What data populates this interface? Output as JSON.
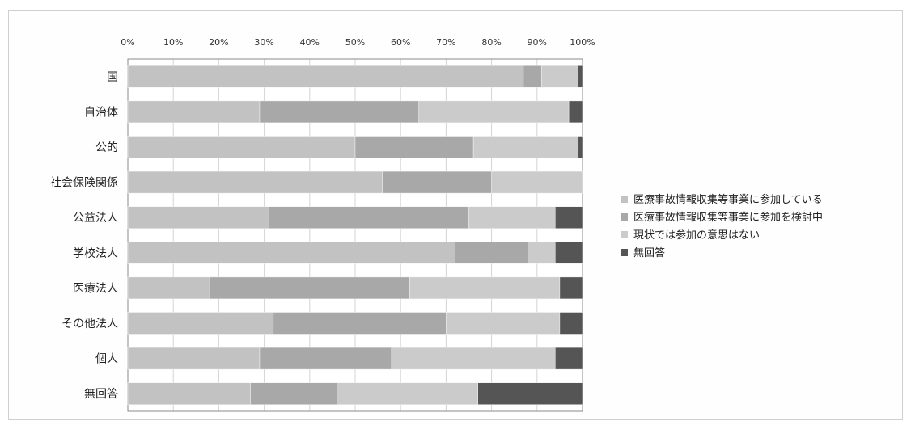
{
  "chart_data": {
    "type": "bar",
    "orientation": "horizontal",
    "stacked": true,
    "normalized": true,
    "categories": [
      "国",
      "自治体",
      "公的",
      "社会保険関係",
      "公益法人",
      "学校法人",
      "医療法人",
      "その他法人",
      "個人",
      "無回答"
    ],
    "x_ticks": [
      "0%",
      "10%",
      "20%",
      "30%",
      "40%",
      "50%",
      "60%",
      "70%",
      "80%",
      "90%",
      "100%"
    ],
    "xlim": [
      0,
      100
    ],
    "grid": true,
    "legend_position": "right",
    "series": [
      {
        "name": "医療事故情報収集等事業に参加している",
        "color": "#c2c2c2",
        "values": [
          87,
          29,
          50,
          56,
          31,
          72,
          18,
          32,
          29,
          27
        ]
      },
      {
        "name": "医療事故情報収集等事業に参加を検討中",
        "color": "#a8a8a8",
        "values": [
          4,
          35,
          26,
          24,
          44,
          16,
          44,
          38,
          29,
          19
        ]
      },
      {
        "name": "現状では参加の意思はない",
        "color": "#cbcbcb",
        "values": [
          8,
          33,
          23,
          20,
          19,
          6,
          33,
          25,
          36,
          31
        ]
      },
      {
        "name": "無回答",
        "color": "#555555",
        "values": [
          1,
          3,
          1,
          0,
          6,
          6,
          5,
          5,
          6,
          23
        ]
      }
    ]
  }
}
